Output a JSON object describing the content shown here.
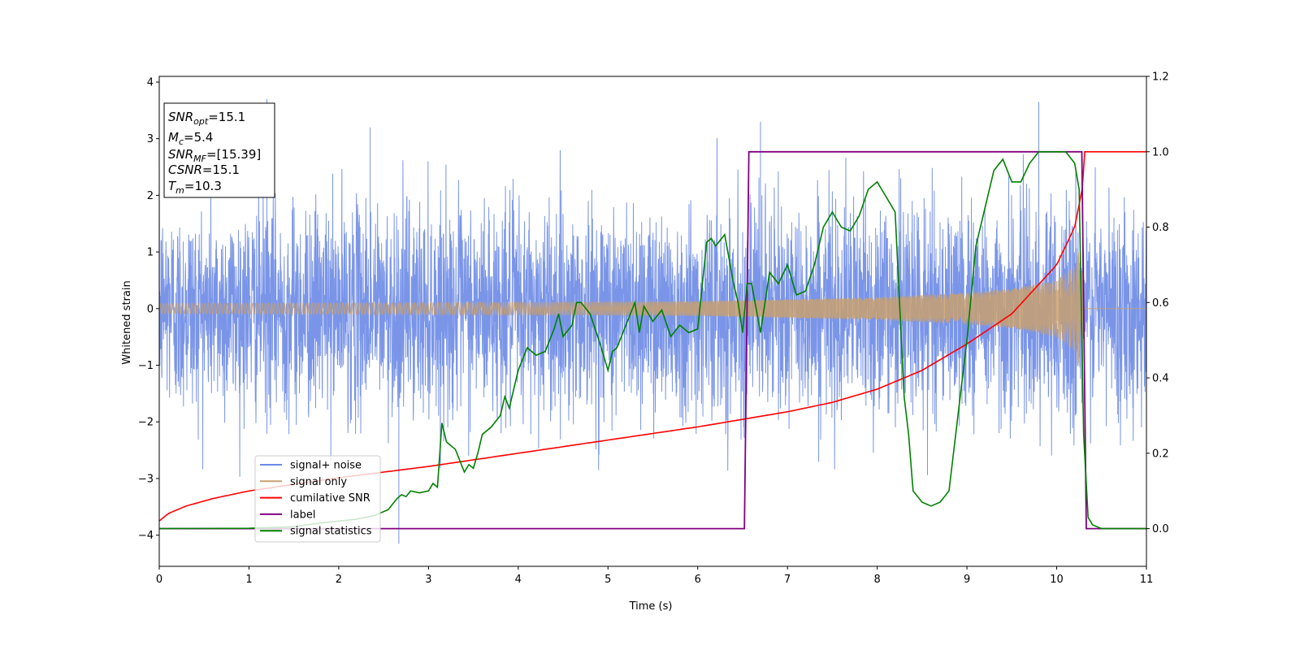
{
  "chart_data": {
    "type": "line",
    "title": "",
    "xlabel": "Time (s)",
    "ylabel": "Whitened strain",
    "xlim": [
      0,
      11
    ],
    "ylim": [
      -4.55,
      4.1
    ],
    "y2lim": [
      -0.1,
      1.2
    ],
    "xticks": [
      "0",
      "1",
      "2",
      "3",
      "4",
      "5",
      "6",
      "7",
      "8",
      "9",
      "10",
      "11"
    ],
    "yticks": [
      "−4",
      "−3",
      "−2",
      "−1",
      "0",
      "1",
      "2",
      "3",
      "4"
    ],
    "y2ticks": [
      "0.0",
      "0.2",
      "0.4",
      "0.6",
      "0.8",
      "1.0",
      "1.2"
    ],
    "grid": false,
    "legend_position": "lower-left",
    "info_box": {
      "snr_opt": {
        "base": "SNR",
        "sub": "opt",
        "value": "=15.1"
      },
      "mc": {
        "base": "M",
        "sub": "c",
        "value": "=5.4"
      },
      "snr_mf": {
        "base": "SNR",
        "sub": "MF",
        "value": "=[15.39]"
      },
      "csnr": {
        "base": "CSNR",
        "value": "=15.1"
      },
      "tm": {
        "base": "T",
        "sub": "m",
        "value": "=10.3"
      }
    },
    "series": [
      {
        "name": "signal+ noise",
        "color": "#6b8ae6",
        "axis": "left",
        "kind": "noise",
        "noise_std": 0.9,
        "envelope": {
          "range_typical": [
            -2.2,
            2.3
          ],
          "spikes": [
            [
              1.2,
              3.7
            ],
            [
              2.67,
              -4.15
            ],
            [
              9.8,
              3.65
            ],
            [
              6.7,
              3.3
            ],
            [
              2.35,
              3.2
            ]
          ]
        }
      },
      {
        "name": "signal only",
        "color": "#c8a070",
        "axis": "left",
        "kind": "chirp",
        "t_merge": 10.3,
        "amplitude": {
          "t": [
            0,
            2,
            4,
            6,
            8,
            9,
            9.5,
            10,
            10.2,
            10.28,
            10.3,
            11
          ],
          "a": [
            0.09,
            0.1,
            0.11,
            0.13,
            0.2,
            0.28,
            0.35,
            0.5,
            0.75,
            1.3,
            0.0,
            0.0
          ]
        }
      },
      {
        "name": "cumilative SNR",
        "color": "#ff0000",
        "axis": "right",
        "x": [
          0,
          0.1,
          0.3,
          0.6,
          1,
          2,
          3,
          4,
          5,
          6,
          6.5,
          7,
          7.5,
          8,
          8.5,
          9,
          9.5,
          10,
          10.2,
          10.3,
          10.31,
          11
        ],
        "values": [
          0.02,
          0.04,
          0.06,
          0.08,
          0.1,
          0.135,
          0.165,
          0.2,
          0.235,
          0.27,
          0.29,
          0.31,
          0.335,
          0.37,
          0.42,
          0.49,
          0.57,
          0.7,
          0.8,
          0.92,
          1.0,
          1.0
        ]
      },
      {
        "name": "label",
        "color": "#800080",
        "axis": "right",
        "x": [
          0,
          6.52,
          6.57,
          10.28,
          10.33,
          11
        ],
        "values": [
          0,
          0,
          1,
          1,
          0,
          0
        ]
      },
      {
        "name": "signal statistics",
        "color": "#008000",
        "axis": "right",
        "x": [
          0,
          1,
          1.5,
          1.8,
          2,
          2.2,
          2.4,
          2.55,
          2.65,
          2.7,
          2.75,
          2.8,
          2.9,
          3.0,
          3.05,
          3.1,
          3.15,
          3.2,
          3.3,
          3.4,
          3.45,
          3.5,
          3.55,
          3.6,
          3.7,
          3.8,
          3.85,
          3.9,
          4.0,
          4.1,
          4.2,
          4.3,
          4.4,
          4.45,
          4.5,
          4.6,
          4.65,
          4.7,
          4.8,
          4.9,
          5.0,
          5.05,
          5.1,
          5.2,
          5.3,
          5.35,
          5.4,
          5.5,
          5.6,
          5.7,
          5.8,
          5.85,
          5.9,
          6.0,
          6.1,
          6.15,
          6.2,
          6.3,
          6.4,
          6.45,
          6.5,
          6.55,
          6.6,
          6.7,
          6.8,
          6.9,
          7.0,
          7.1,
          7.2,
          7.3,
          7.4,
          7.5,
          7.55,
          7.6,
          7.7,
          7.8,
          7.9,
          8.0,
          8.1,
          8.2,
          8.3,
          8.35,
          8.4,
          8.5,
          8.6,
          8.7,
          8.8,
          8.9,
          9.0,
          9.1,
          9.2,
          9.3,
          9.4,
          9.5,
          9.6,
          9.7,
          9.8,
          9.9,
          10.0,
          10.1,
          10.2,
          10.25,
          10.3,
          10.35,
          10.4,
          10.5,
          11
        ],
        "values": [
          0.0,
          0.001,
          0.005,
          0.015,
          0.02,
          0.025,
          0.035,
          0.05,
          0.08,
          0.09,
          0.085,
          0.1,
          0.095,
          0.1,
          0.12,
          0.11,
          0.28,
          0.23,
          0.21,
          0.15,
          0.17,
          0.16,
          0.2,
          0.25,
          0.27,
          0.3,
          0.35,
          0.32,
          0.42,
          0.48,
          0.46,
          0.47,
          0.53,
          0.57,
          0.51,
          0.54,
          0.6,
          0.6,
          0.57,
          0.5,
          0.42,
          0.47,
          0.48,
          0.54,
          0.6,
          0.52,
          0.59,
          0.55,
          0.58,
          0.51,
          0.54,
          0.53,
          0.52,
          0.53,
          0.76,
          0.77,
          0.75,
          0.78,
          0.65,
          0.6,
          0.52,
          0.65,
          0.65,
          0.52,
          0.68,
          0.65,
          0.7,
          0.62,
          0.63,
          0.7,
          0.8,
          0.84,
          0.82,
          0.8,
          0.79,
          0.83,
          0.9,
          0.92,
          0.88,
          0.84,
          0.35,
          0.25,
          0.1,
          0.07,
          0.06,
          0.07,
          0.1,
          0.3,
          0.5,
          0.75,
          0.85,
          0.95,
          0.98,
          0.92,
          0.92,
          0.97,
          1.0,
          1.0,
          1.0,
          1.0,
          0.97,
          0.9,
          0.25,
          0.03,
          0.01,
          0.0,
          0.0
        ]
      }
    ]
  }
}
